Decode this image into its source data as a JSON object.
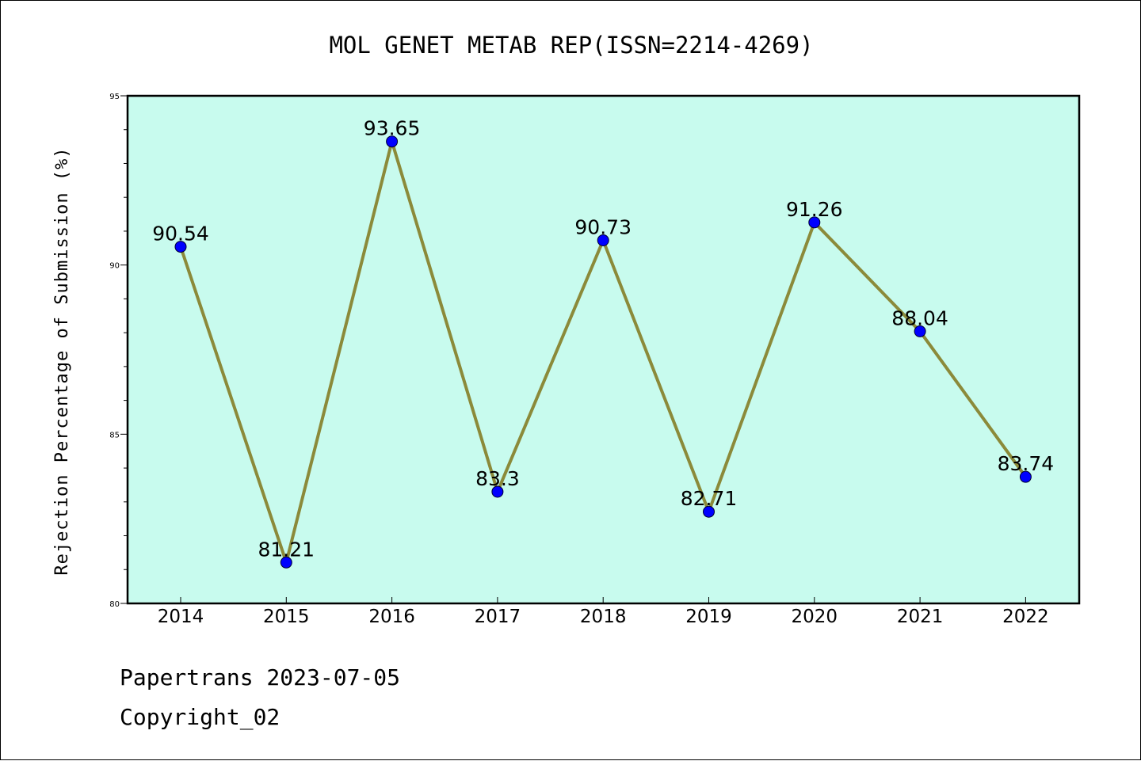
{
  "chart_data": {
    "type": "line",
    "title": "MOL GENET METAB REP(ISSN=2214-4269)",
    "ylabel": "Rejection Percentage of Submission (%)",
    "xlabel": "",
    "categories": [
      "2014",
      "2015",
      "2016",
      "2017",
      "2018",
      "2019",
      "2020",
      "2021",
      "2022"
    ],
    "values": [
      90.54,
      81.21,
      93.65,
      83.3,
      90.73,
      82.71,
      91.26,
      88.04,
      83.74
    ],
    "data_labels": [
      "90.54",
      "81.21",
      "93.65",
      "83.3",
      "90.73",
      "82.71",
      "91.26",
      "88.04",
      "83.74"
    ],
    "ylim": [
      80,
      95
    ],
    "yticks": [
      "80",
      "85",
      "90",
      "95"
    ],
    "grid": false,
    "plot_background": "#c8fbee",
    "line_color": "#8b8a3a",
    "marker_color": "#0000ff"
  },
  "footer": {
    "line1": "Papertrans 2023-07-05",
    "line2": "Copyright_02"
  }
}
